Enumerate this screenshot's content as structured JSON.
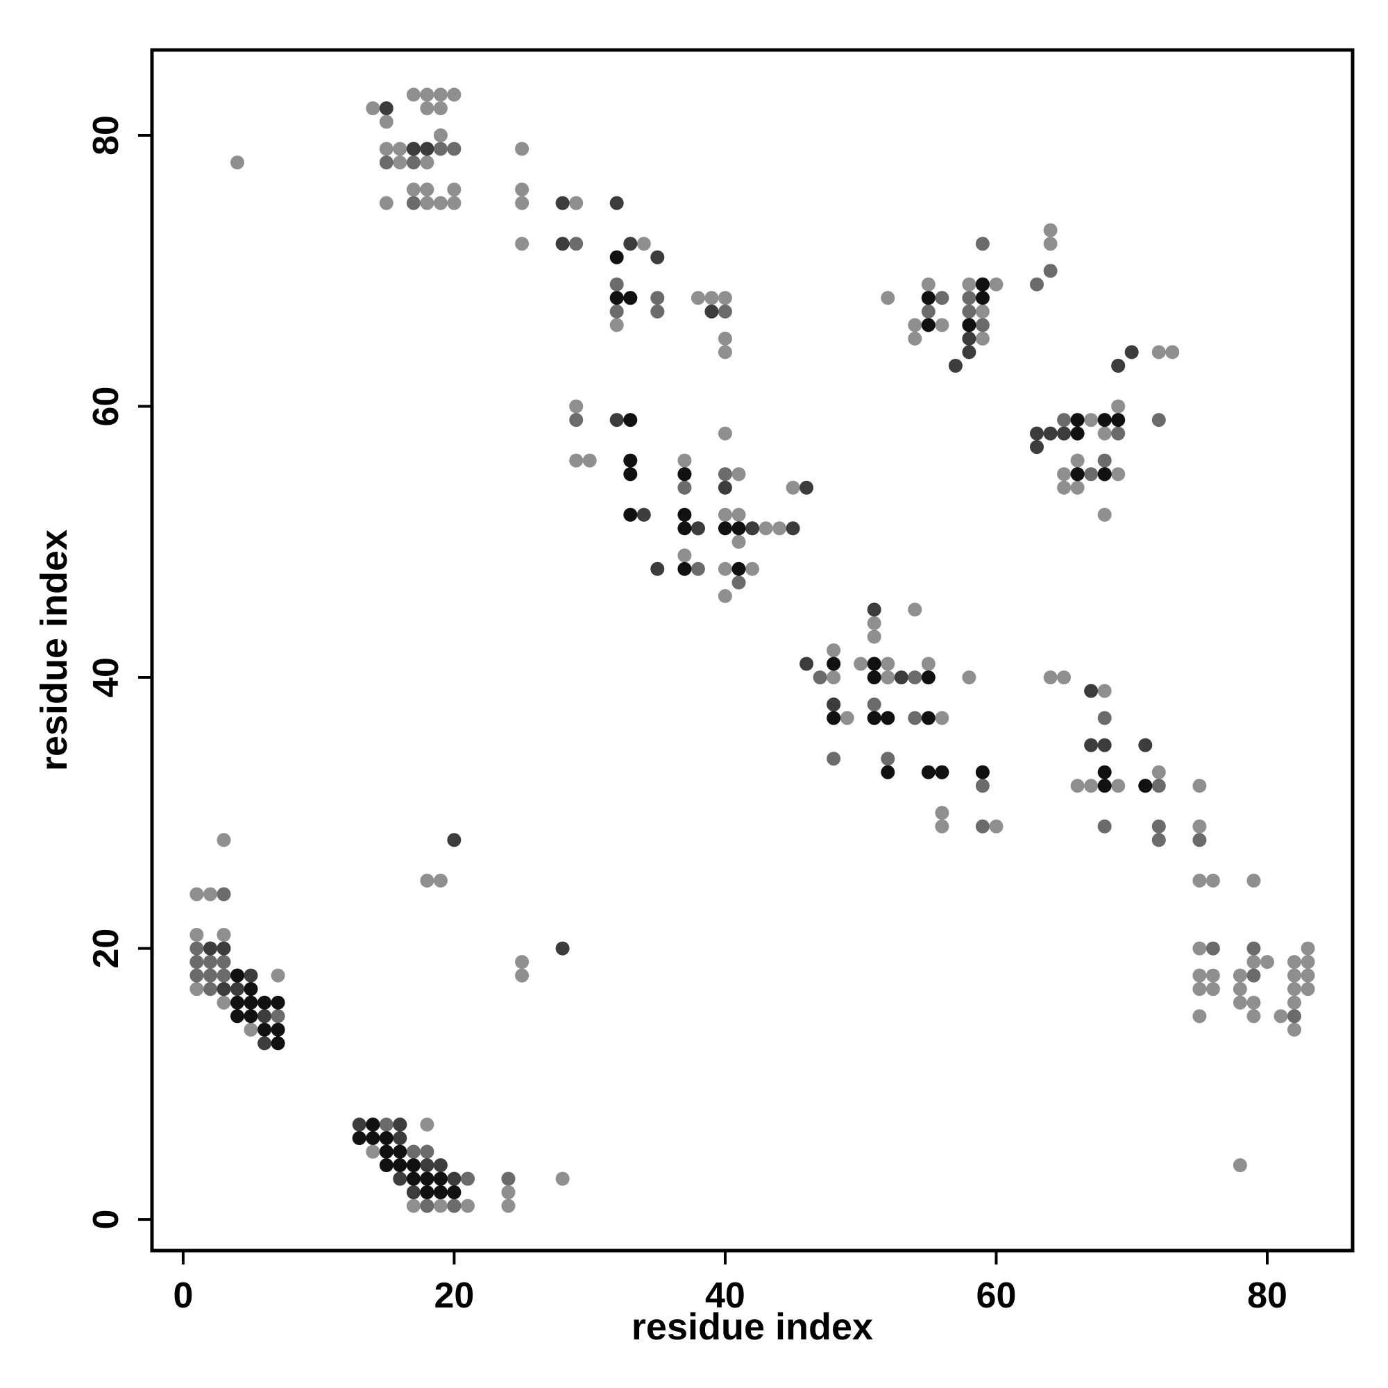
{
  "chart_data": {
    "type": "scatter",
    "title": "",
    "xlabel": "residue index",
    "ylabel": "residue index",
    "xlim": [
      -2.3,
      86.3
    ],
    "ylim": [
      -2.3,
      86.3
    ],
    "xticks": [
      0,
      20,
      40,
      60,
      80
    ],
    "yticks": [
      0,
      20,
      40,
      60,
      80
    ],
    "grid": false,
    "legend": "none",
    "colors": {
      "light": "#8f8f8f",
      "medium": "#6b6b6b",
      "dark": "#3c3c3c",
      "black": "#111111"
    },
    "points": {
      "light": [
        [
          4,
          78
        ],
        [
          14,
          82
        ],
        [
          15,
          81
        ],
        [
          18,
          82
        ],
        [
          19,
          82
        ],
        [
          15,
          79
        ],
        [
          16,
          79
        ],
        [
          16,
          78
        ],
        [
          18,
          78
        ],
        [
          19,
          80
        ],
        [
          15,
          75
        ],
        [
          17,
          76
        ],
        [
          18,
          76
        ],
        [
          18,
          75
        ],
        [
          19,
          75
        ],
        [
          20,
          76
        ],
        [
          20,
          75
        ],
        [
          17,
          83
        ],
        [
          18,
          83
        ],
        [
          19,
          83
        ],
        [
          20,
          83
        ],
        [
          25,
          79
        ],
        [
          25,
          76
        ],
        [
          25,
          75
        ],
        [
          25,
          72
        ],
        [
          29,
          75
        ],
        [
          34,
          72
        ],
        [
          38,
          68
        ],
        [
          39,
          68
        ],
        [
          40,
          68
        ],
        [
          40,
          65
        ],
        [
          40,
          64
        ],
        [
          32,
          66
        ],
        [
          33,
          68
        ],
        [
          29,
          60
        ],
        [
          29,
          56
        ],
        [
          30,
          56
        ],
        [
          37,
          56
        ],
        [
          37,
          49
        ],
        [
          41,
          55
        ],
        [
          40,
          52
        ],
        [
          41,
          52
        ],
        [
          40,
          48
        ],
        [
          42,
          48
        ],
        [
          42,
          51
        ],
        [
          43,
          51
        ],
        [
          44,
          51
        ],
        [
          45,
          54
        ],
        [
          40,
          46
        ],
        [
          41,
          50
        ],
        [
          40,
          58
        ],
        [
          52,
          68
        ],
        [
          54,
          66
        ],
        [
          54,
          65
        ],
        [
          55,
          69
        ],
        [
          56,
          66
        ],
        [
          58,
          69
        ],
        [
          59,
          67
        ],
        [
          60,
          69
        ],
        [
          59,
          65
        ],
        [
          64,
          73
        ],
        [
          64,
          72
        ],
        [
          72,
          64
        ],
        [
          73,
          64
        ],
        [
          64,
          58
        ],
        [
          66,
          56
        ],
        [
          65,
          55
        ],
        [
          66,
          54
        ],
        [
          65,
          54
        ],
        [
          68,
          52
        ],
        [
          67,
          59
        ],
        [
          68,
          58
        ],
        [
          69,
          60
        ],
        [
          69,
          55
        ],
        [
          48,
          42
        ],
        [
          48,
          40
        ],
        [
          49,
          37
        ],
        [
          51,
          44
        ],
        [
          51,
          43
        ],
        [
          50,
          41
        ],
        [
          52,
          41
        ],
        [
          52,
          40
        ],
        [
          54,
          45
        ],
        [
          55,
          41
        ],
        [
          56,
          37
        ],
        [
          58,
          40
        ],
        [
          56,
          30
        ],
        [
          56,
          29
        ],
        [
          60,
          29
        ],
        [
          64,
          40
        ],
        [
          65,
          40
        ],
        [
          68,
          39
        ],
        [
          66,
          32
        ],
        [
          67,
          32
        ],
        [
          69,
          32
        ],
        [
          72,
          33
        ],
        [
          75,
          32
        ],
        [
          75,
          29
        ],
        [
          75,
          25
        ],
        [
          76,
          25
        ],
        [
          75,
          20
        ],
        [
          75,
          18
        ],
        [
          76,
          18
        ],
        [
          75,
          17
        ],
        [
          76,
          17
        ],
        [
          75,
          15
        ],
        [
          79,
          25
        ],
        [
          78,
          18
        ],
        [
          78,
          17
        ],
        [
          79,
          19
        ],
        [
          80,
          19
        ],
        [
          78,
          16
        ],
        [
          79,
          16
        ],
        [
          79,
          15
        ],
        [
          81,
          15
        ],
        [
          82,
          19
        ],
        [
          83,
          19
        ],
        [
          82,
          18
        ],
        [
          83,
          18
        ],
        [
          82,
          17
        ],
        [
          83,
          17
        ],
        [
          82,
          16
        ],
        [
          82,
          14
        ],
        [
          83,
          20
        ],
        [
          78,
          4
        ],
        [
          1,
          24
        ],
        [
          2,
          24
        ],
        [
          1,
          21
        ],
        [
          3,
          21
        ],
        [
          1,
          17
        ],
        [
          3,
          16
        ],
        [
          5,
          14
        ],
        [
          7,
          18
        ],
        [
          3,
          28
        ],
        [
          18,
          25
        ],
        [
          19,
          25
        ],
        [
          25,
          19
        ],
        [
          25,
          18
        ],
        [
          28,
          3
        ],
        [
          14,
          5
        ],
        [
          16,
          3
        ],
        [
          18,
          7
        ],
        [
          17,
          1
        ],
        [
          18,
          1
        ],
        [
          19,
          1
        ],
        [
          20,
          1
        ],
        [
          21,
          1
        ],
        [
          19,
          2
        ],
        [
          20,
          2
        ],
        [
          21,
          3
        ],
        [
          24,
          1
        ],
        [
          24,
          2
        ]
      ],
      "medium": [
        [
          15,
          78
        ],
        [
          17,
          78
        ],
        [
          17,
          79
        ],
        [
          18,
          79
        ],
        [
          19,
          79
        ],
        [
          20,
          79
        ],
        [
          17,
          75
        ],
        [
          29,
          72
        ],
        [
          32,
          69
        ],
        [
          32,
          67
        ],
        [
          35,
          68
        ],
        [
          35,
          67
        ],
        [
          40,
          67
        ],
        [
          37,
          55
        ],
        [
          37,
          54
        ],
        [
          38,
          51
        ],
        [
          38,
          48
        ],
        [
          40,
          55
        ],
        [
          41,
          47
        ],
        [
          29,
          59
        ],
        [
          55,
          68
        ],
        [
          55,
          67
        ],
        [
          56,
          68
        ],
        [
          58,
          68
        ],
        [
          58,
          67
        ],
        [
          59,
          72
        ],
        [
          59,
          66
        ],
        [
          63,
          69
        ],
        [
          64,
          70
        ],
        [
          65,
          59
        ],
        [
          65,
          58
        ],
        [
          66,
          55
        ],
        [
          67,
          55
        ],
        [
          68,
          56
        ],
        [
          68,
          55
        ],
        [
          69,
          58
        ],
        [
          72,
          59
        ],
        [
          68,
          59
        ],
        [
          69,
          63
        ],
        [
          47,
          40
        ],
        [
          48,
          34
        ],
        [
          48,
          38
        ],
        [
          51,
          38
        ],
        [
          52,
          34
        ],
        [
          54,
          40
        ],
        [
          54,
          37
        ],
        [
          55,
          40
        ],
        [
          59,
          32
        ],
        [
          59,
          29
        ],
        [
          68,
          37
        ],
        [
          68,
          29
        ],
        [
          72,
          29
        ],
        [
          72,
          28
        ],
        [
          72,
          32
        ],
        [
          75,
          28
        ],
        [
          76,
          20
        ],
        [
          79,
          20
        ],
        [
          79,
          18
        ],
        [
          82,
          15
        ],
        [
          1,
          20
        ],
        [
          2,
          20
        ],
        [
          1,
          19
        ],
        [
          2,
          19
        ],
        [
          3,
          19
        ],
        [
          1,
          18
        ],
        [
          2,
          18
        ],
        [
          3,
          18
        ],
        [
          2,
          17
        ],
        [
          3,
          17
        ],
        [
          3,
          24
        ],
        [
          5,
          16
        ],
        [
          6,
          16
        ],
        [
          6,
          15
        ],
        [
          7,
          15
        ],
        [
          15,
          7
        ],
        [
          15,
          6
        ],
        [
          16,
          7
        ],
        [
          17,
          5
        ],
        [
          17,
          4
        ],
        [
          17,
          3
        ],
        [
          18,
          2
        ],
        [
          18,
          1
        ],
        [
          20,
          1
        ],
        [
          21,
          3
        ],
        [
          24,
          3
        ],
        [
          18,
          5
        ]
      ],
      "dark": [
        [
          15,
          82
        ],
        [
          18,
          79
        ],
        [
          17,
          79
        ],
        [
          28,
          75
        ],
        [
          28,
          72
        ],
        [
          32,
          75
        ],
        [
          33,
          72
        ],
        [
          35,
          71
        ],
        [
          39,
          67
        ],
        [
          32,
          59
        ],
        [
          34,
          52
        ],
        [
          35,
          48
        ],
        [
          38,
          51
        ],
        [
          46,
          54
        ],
        [
          45,
          51
        ],
        [
          40,
          54
        ],
        [
          42,
          51
        ],
        [
          58,
          66
        ],
        [
          58,
          65
        ],
        [
          58,
          64
        ],
        [
          57,
          63
        ],
        [
          59,
          69
        ],
        [
          63,
          58
        ],
        [
          64,
          58
        ],
        [
          65,
          58
        ],
        [
          70,
          64
        ],
        [
          69,
          63
        ],
        [
          63,
          57
        ],
        [
          46,
          41
        ],
        [
          48,
          38
        ],
        [
          51,
          45
        ],
        [
          51,
          37
        ],
        [
          53,
          40
        ],
        [
          56,
          33
        ],
        [
          59,
          33
        ],
        [
          67,
          39
        ],
        [
          68,
          35
        ],
        [
          67,
          35
        ],
        [
          71,
          35
        ],
        [
          71,
          32
        ],
        [
          3,
          20
        ],
        [
          2,
          20
        ],
        [
          3,
          17
        ],
        [
          4,
          18
        ],
        [
          5,
          18
        ],
        [
          4,
          17
        ],
        [
          6,
          15
        ],
        [
          6,
          13
        ],
        [
          20,
          28
        ],
        [
          28,
          20
        ],
        [
          13,
          7
        ],
        [
          14,
          7
        ],
        [
          16,
          7
        ],
        [
          13,
          6
        ],
        [
          16,
          6
        ],
        [
          18,
          3
        ],
        [
          19,
          3
        ],
        [
          20,
          3
        ],
        [
          19,
          4
        ],
        [
          18,
          4
        ],
        [
          16,
          3
        ],
        [
          17,
          2
        ]
      ],
      "black": [
        [
          32,
          71
        ],
        [
          32,
          68
        ],
        [
          33,
          68
        ],
        [
          33,
          59
        ],
        [
          33,
          56
        ],
        [
          33,
          55
        ],
        [
          33,
          52
        ],
        [
          37,
          55
        ],
        [
          37,
          52
        ],
        [
          37,
          51
        ],
        [
          37,
          48
        ],
        [
          40,
          51
        ],
        [
          41,
          51
        ],
        [
          41,
          48
        ],
        [
          55,
          68
        ],
        [
          55,
          66
        ],
        [
          58,
          66
        ],
        [
          59,
          68
        ],
        [
          59,
          69
        ],
        [
          66,
          59
        ],
        [
          68,
          59
        ],
        [
          69,
          59
        ],
        [
          66,
          55
        ],
        [
          68,
          55
        ],
        [
          66,
          58
        ],
        [
          48,
          41
        ],
        [
          48,
          37
        ],
        [
          51,
          41
        ],
        [
          51,
          40
        ],
        [
          51,
          37
        ],
        [
          52,
          37
        ],
        [
          52,
          33
        ],
        [
          55,
          40
        ],
        [
          55,
          37
        ],
        [
          55,
          33
        ],
        [
          56,
          33
        ],
        [
          59,
          33
        ],
        [
          68,
          33
        ],
        [
          68,
          32
        ],
        [
          71,
          32
        ],
        [
          4,
          15
        ],
        [
          4,
          16
        ],
        [
          5,
          16
        ],
        [
          5,
          15
        ],
        [
          6,
          16
        ],
        [
          7,
          16
        ],
        [
          6,
          14
        ],
        [
          7,
          14
        ],
        [
          7,
          13
        ],
        [
          5,
          17
        ],
        [
          4,
          18
        ],
        [
          13,
          6
        ],
        [
          14,
          6
        ],
        [
          14,
          7
        ],
        [
          15,
          6
        ],
        [
          15,
          5
        ],
        [
          15,
          4
        ],
        [
          16,
          5
        ],
        [
          16,
          4
        ],
        [
          17,
          4
        ],
        [
          17,
          3
        ],
        [
          18,
          3
        ],
        [
          18,
          2
        ],
        [
          19,
          2
        ],
        [
          20,
          2
        ],
        [
          19,
          3
        ]
      ]
    }
  }
}
